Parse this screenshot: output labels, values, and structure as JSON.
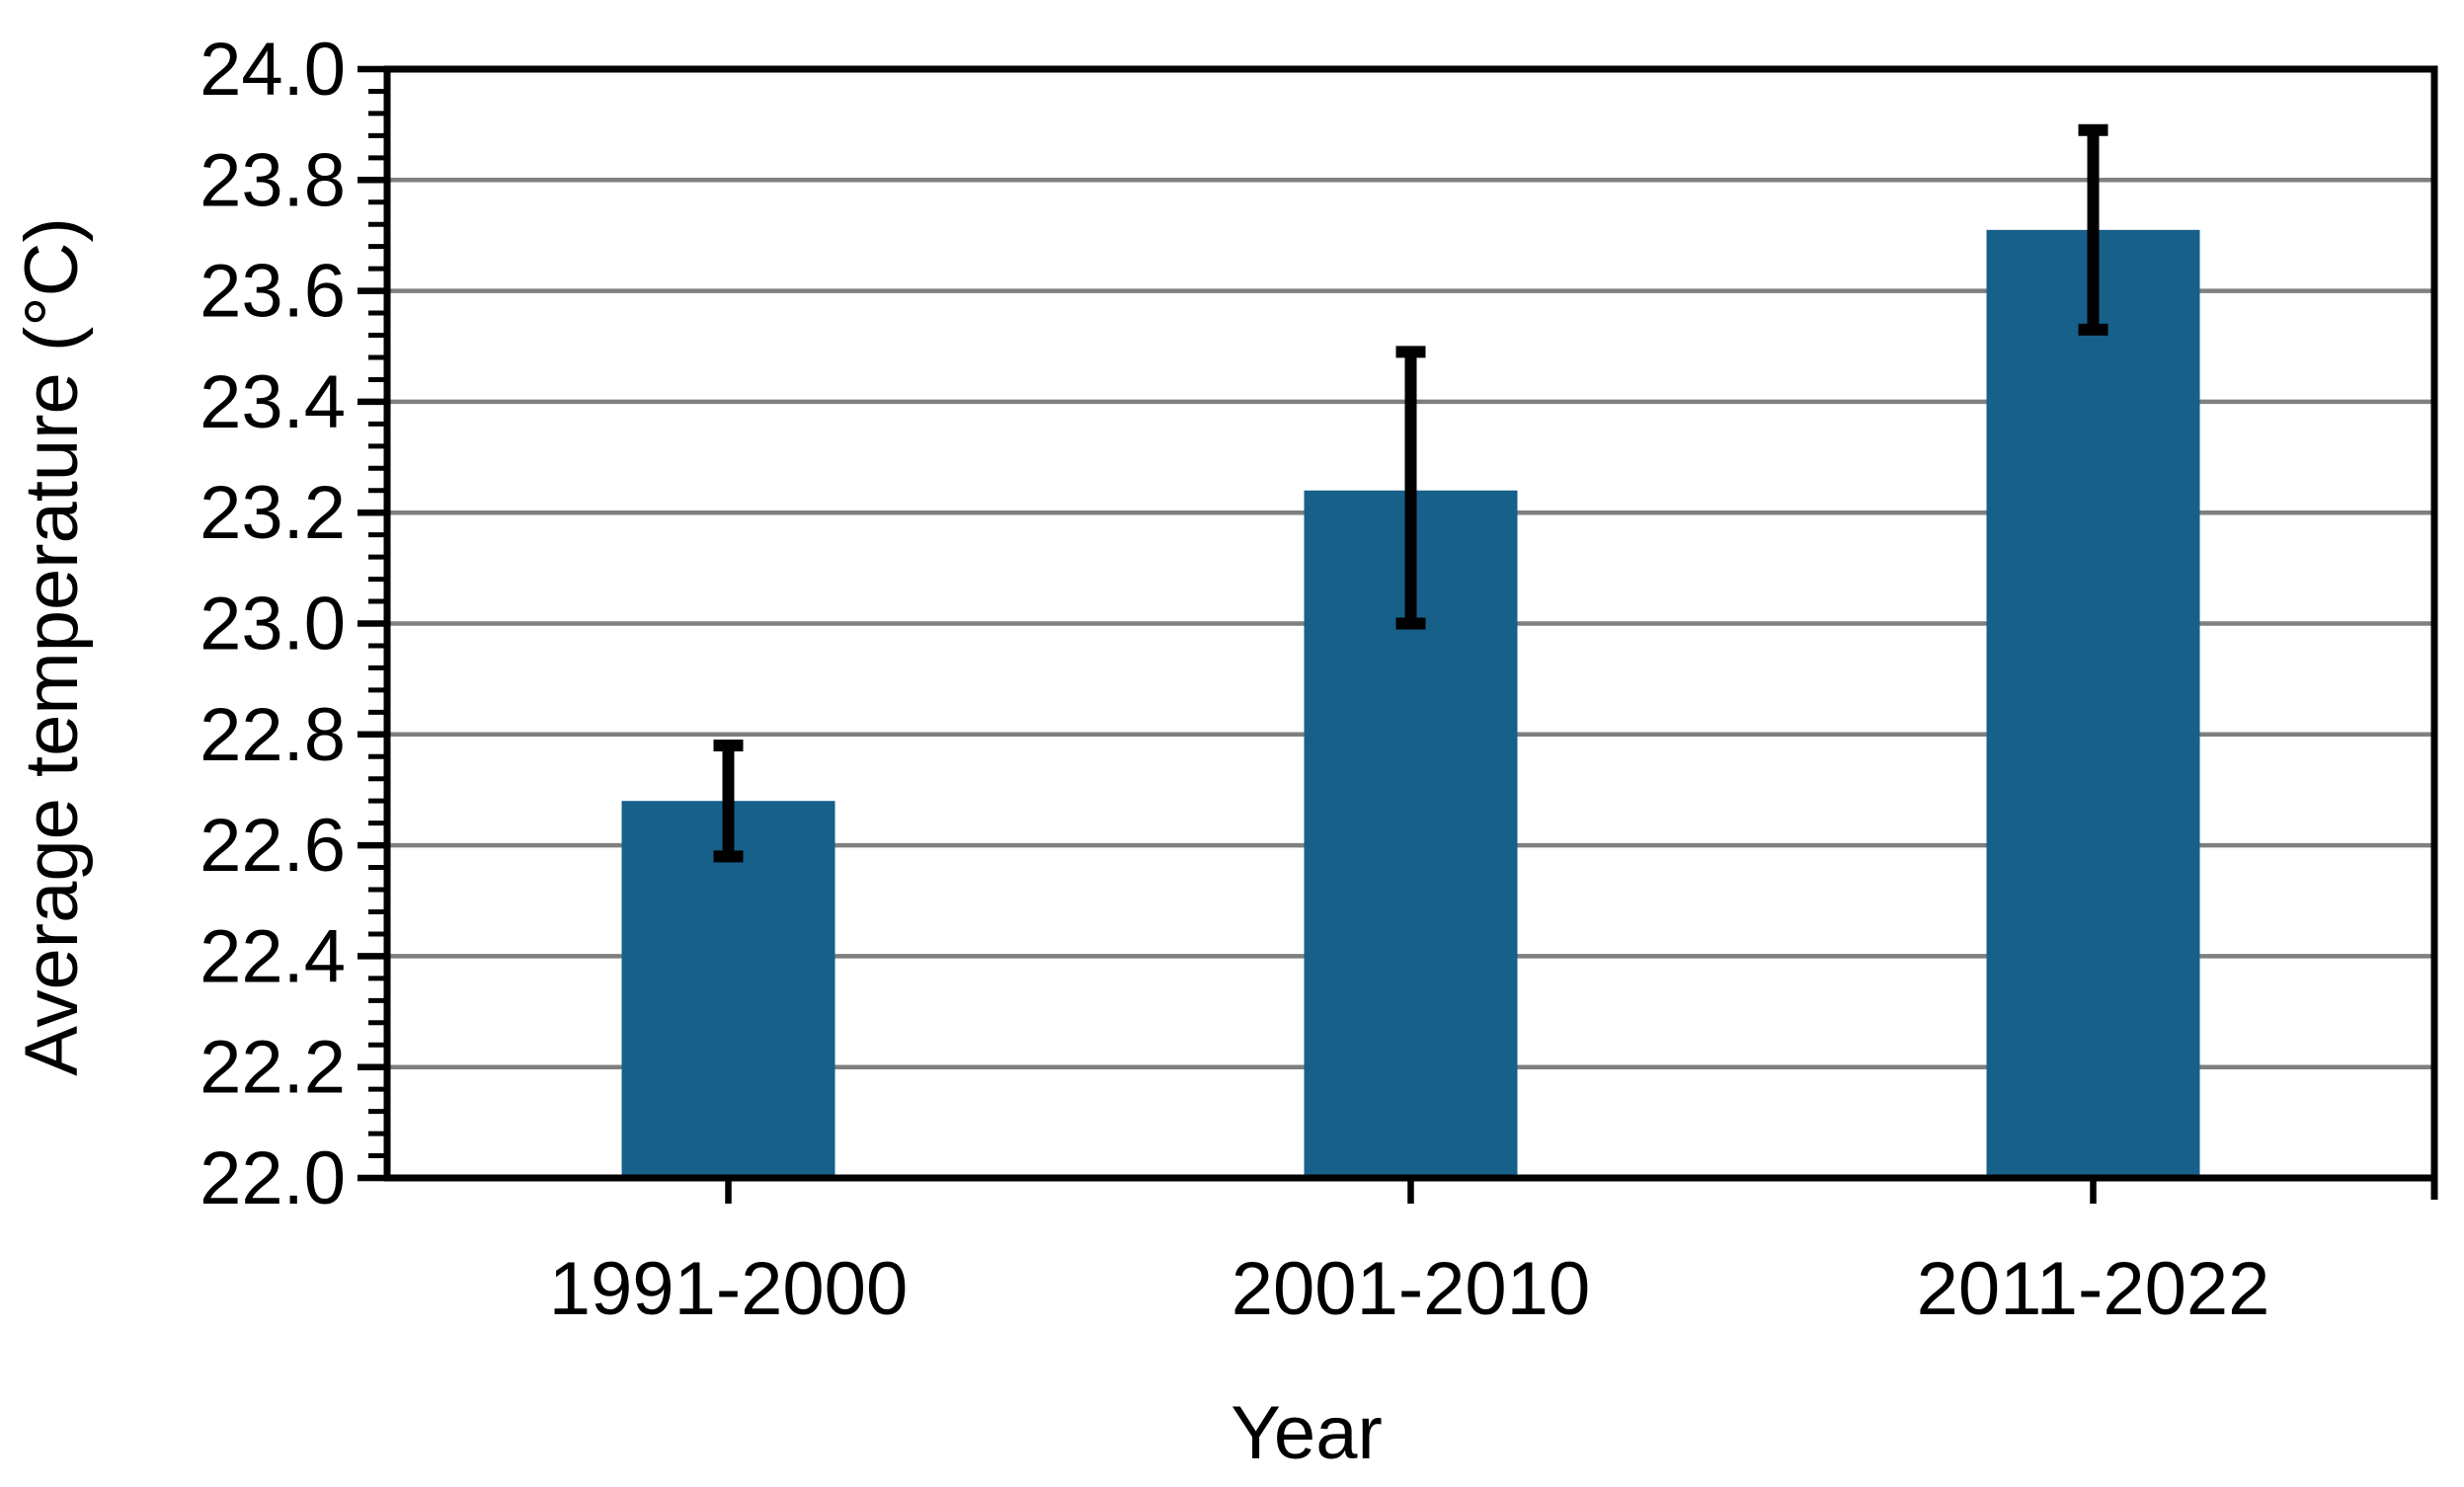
{
  "chart_data": {
    "type": "bar",
    "title": "",
    "xlabel": "Year",
    "ylabel": "Average temperature (°C)",
    "categories": [
      "1991-2000",
      "2001-2010",
      "2011-2022"
    ],
    "series": [
      {
        "name": "Average temperature",
        "values": [
          22.68,
          23.24,
          23.71
        ],
        "error_low": [
          22.58,
          23.0,
          23.53
        ],
        "error_high": [
          22.78,
          23.49,
          23.89
        ]
      }
    ],
    "ylim": [
      22.0,
      24.0
    ],
    "ytick_step": 0.2,
    "yminor_step": 0.04,
    "ytick_labels": [
      "22.0",
      "22.2",
      "22.4",
      "22.6",
      "22.8",
      "23.0",
      "23.2",
      "23.4",
      "23.6",
      "23.8",
      "24.0"
    ],
    "grid": "horizontal-major",
    "legend": "none",
    "colors": {
      "bar": "#17608A",
      "gridline": "#7F7F7F",
      "axis": "#000000",
      "text": "#000000",
      "error_bar": "#000000",
      "background": "#FFFFFF"
    }
  }
}
